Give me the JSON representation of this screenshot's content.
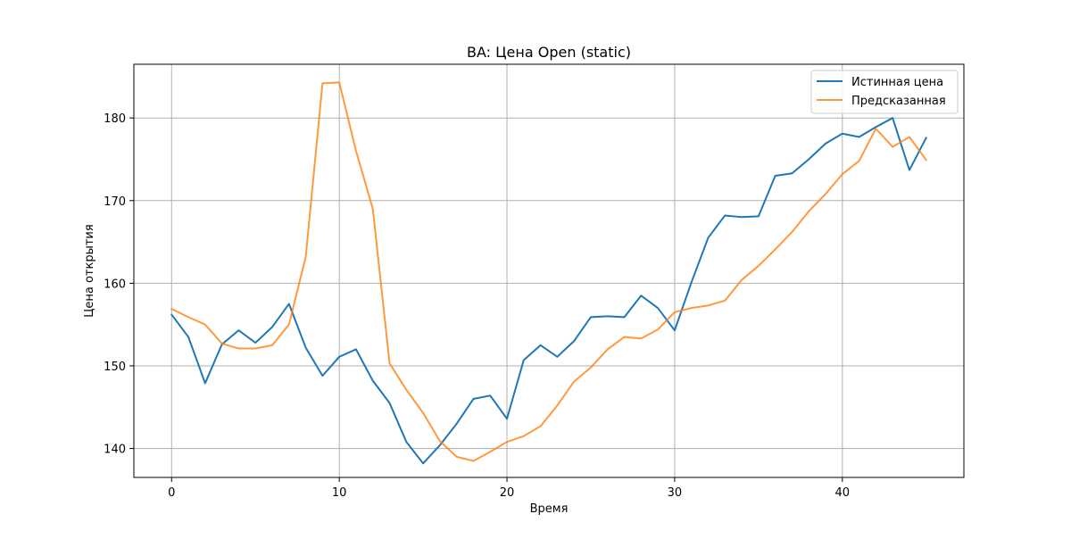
{
  "chart_data": {
    "type": "line",
    "title": "BA: Цена Open (static)",
    "xlabel": "Время",
    "ylabel": "Цена открытия",
    "xlim": [
      -2.25,
      47.25
    ],
    "ylim": [
      136.5,
      186.5
    ],
    "xticks": [
      0,
      10,
      20,
      30,
      40
    ],
    "yticks": [
      140,
      150,
      160,
      170,
      180
    ],
    "grid": true,
    "legend_position": "top-right",
    "x": [
      0,
      1,
      2,
      3,
      4,
      5,
      6,
      7,
      8,
      9,
      10,
      11,
      12,
      13,
      14,
      15,
      16,
      17,
      18,
      19,
      20,
      21,
      22,
      23,
      24,
      25,
      26,
      27,
      28,
      29,
      30,
      31,
      32,
      33,
      34,
      35,
      36,
      37,
      38,
      39,
      40,
      41,
      42,
      43,
      44,
      45
    ],
    "series": [
      {
        "name": "Истинная цена",
        "color": "#1f77b4",
        "values": [
          156.2,
          153.5,
          147.9,
          152.6,
          154.3,
          152.8,
          154.7,
          157.5,
          152.2,
          148.8,
          151.1,
          152.0,
          148.2,
          145.5,
          140.8,
          138.2,
          140.4,
          143.0,
          146.0,
          146.4,
          143.6,
          150.7,
          152.5,
          151.1,
          153.0,
          155.9,
          156.0,
          155.9,
          158.5,
          157.0,
          154.3,
          160.1,
          165.5,
          168.2,
          168.0,
          168.1,
          173.0,
          173.3,
          175.0,
          176.9,
          178.1,
          177.7,
          178.9,
          180.0,
          173.7,
          177.6
        ]
      },
      {
        "name": "Предсказанная",
        "color": "#ff7f0e",
        "values": [
          156.9,
          155.9,
          155.0,
          152.7,
          152.1,
          152.1,
          152.5,
          155.0,
          163.2,
          184.2,
          184.3,
          176.0,
          169.0,
          150.3,
          147.1,
          144.3,
          140.9,
          139.0,
          138.5,
          139.6,
          140.8,
          141.5,
          142.7,
          145.2,
          148.1,
          149.8,
          152.0,
          153.5,
          153.3,
          154.4,
          156.5,
          157.0,
          157.3,
          157.9,
          160.4,
          162.1,
          164.1,
          166.2,
          168.7,
          170.8,
          173.2,
          174.8,
          178.7,
          176.5,
          177.7,
          174.9
        ]
      }
    ]
  }
}
